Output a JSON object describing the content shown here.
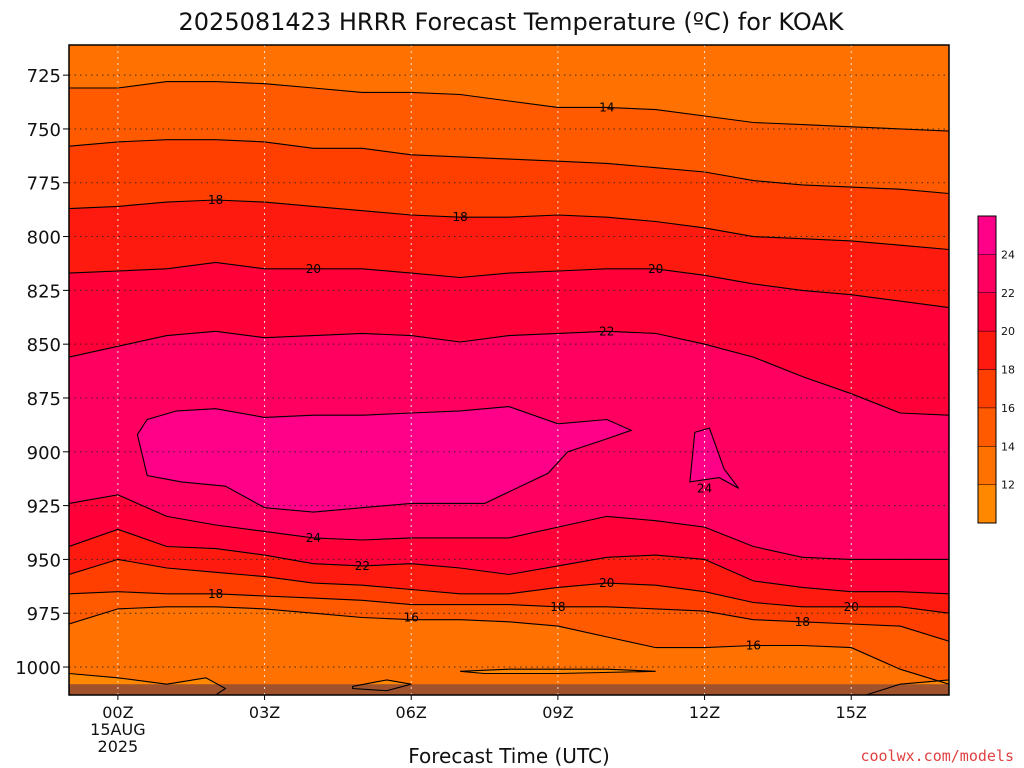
{
  "chart_data": {
    "type": "heatmap",
    "title": "2025081423 HRRR Forecast Temperature (ºC) for KOAK",
    "xlabel": "Forecast Time (UTC)",
    "ylabel": "",
    "x_ticks": [
      "00Z",
      "03Z",
      "06Z",
      "09Z",
      "12Z",
      "15Z"
    ],
    "x_hours": [
      0,
      3,
      6,
      9,
      12,
      15
    ],
    "x_first_date": "15AUG",
    "x_first_year": "2025",
    "xlim_hours": [
      -1,
      17
    ],
    "y_ticks": [
      725,
      750,
      775,
      800,
      825,
      850,
      875,
      900,
      925,
      950,
      975,
      1000
    ],
    "ylim_hPa": [
      711,
      1013
    ],
    "grid": true,
    "colorbar": {
      "levels": [
        10,
        12,
        14,
        16,
        18,
        20,
        22,
        24,
        26
      ],
      "labels": [
        "12",
        "14",
        "16",
        "18",
        "20",
        "22",
        "24"
      ],
      "colors": [
        "#ff8800",
        "#ff7100",
        "#ff5a00",
        "#ff3f00",
        "#ff1a10",
        "#ff0038",
        "#ff0060",
        "#ff0088"
      ],
      "placement": "right"
    },
    "contours": [
      {
        "value": 14,
        "points": [
          [
            -1,
            731
          ],
          [
            0,
            731
          ],
          [
            1,
            728
          ],
          [
            2,
            728
          ],
          [
            3,
            729
          ],
          [
            4,
            731
          ],
          [
            5,
            733
          ],
          [
            6,
            733
          ],
          [
            7,
            734
          ],
          [
            8,
            737
          ],
          [
            9,
            740
          ],
          [
            10,
            740
          ],
          [
            11,
            741
          ],
          [
            12,
            744
          ],
          [
            13,
            747
          ],
          [
            14,
            748
          ],
          [
            15,
            749
          ],
          [
            16,
            750
          ],
          [
            17,
            751
          ]
        ]
      },
      {
        "value": 16,
        "points": [
          [
            -1,
            758
          ],
          [
            0,
            756
          ],
          [
            1,
            755
          ],
          [
            2,
            755
          ],
          [
            3,
            756
          ],
          [
            4,
            759
          ],
          [
            5,
            759
          ],
          [
            6,
            762
          ],
          [
            7,
            763
          ],
          [
            8,
            764
          ],
          [
            9,
            765
          ],
          [
            10,
            766
          ],
          [
            11,
            768
          ],
          [
            12,
            770
          ],
          [
            13,
            774
          ],
          [
            14,
            776
          ],
          [
            15,
            777
          ],
          [
            16,
            778
          ],
          [
            17,
            780
          ]
        ]
      },
      {
        "value": 18,
        "points": [
          [
            -1,
            787
          ],
          [
            0,
            786
          ],
          [
            1,
            784
          ],
          [
            2,
            783
          ],
          [
            3,
            784
          ],
          [
            4,
            786
          ],
          [
            5,
            788
          ],
          [
            6,
            790
          ],
          [
            7,
            791
          ],
          [
            8,
            791
          ],
          [
            9,
            790
          ],
          [
            10,
            791
          ],
          [
            11,
            793
          ],
          [
            12,
            796
          ],
          [
            13,
            800
          ],
          [
            14,
            801
          ],
          [
            15,
            802
          ],
          [
            16,
            804
          ],
          [
            17,
            806
          ]
        ]
      },
      {
        "value": 20,
        "points": [
          [
            -1,
            817
          ],
          [
            0,
            816
          ],
          [
            1,
            815
          ],
          [
            2,
            812
          ],
          [
            3,
            815
          ],
          [
            4,
            815
          ],
          [
            5,
            815
          ],
          [
            6,
            817
          ],
          [
            7,
            819
          ],
          [
            8,
            817
          ],
          [
            9,
            816
          ],
          [
            10,
            815
          ],
          [
            11,
            815
          ],
          [
            12,
            818
          ],
          [
            13,
            822
          ],
          [
            14,
            825
          ],
          [
            15,
            827
          ],
          [
            16,
            830
          ],
          [
            17,
            833
          ]
        ]
      },
      {
        "value": 22,
        "points": [
          [
            -1,
            856
          ],
          [
            0,
            851
          ],
          [
            1,
            846
          ],
          [
            2,
            844
          ],
          [
            3,
            847
          ],
          [
            4,
            846
          ],
          [
            5,
            845
          ],
          [
            6,
            846
          ],
          [
            7,
            849
          ],
          [
            8,
            846
          ],
          [
            9,
            845
          ],
          [
            10,
            844
          ],
          [
            11,
            845
          ],
          [
            12,
            850
          ],
          [
            13,
            856
          ],
          [
            14,
            865
          ],
          [
            15,
            873
          ],
          [
            16,
            882
          ],
          [
            17,
            883
          ]
        ]
      },
      {
        "value": 24,
        "points": [
          [
            -1,
            924
          ],
          [
            0,
            920
          ],
          [
            1,
            930
          ],
          [
            2,
            934
          ],
          [
            3,
            937
          ],
          [
            4,
            940
          ],
          [
            5,
            941
          ],
          [
            6,
            940
          ],
          [
            7,
            940
          ],
          [
            8,
            940
          ],
          [
            9,
            935
          ],
          [
            10,
            930
          ],
          [
            11,
            932
          ],
          [
            12,
            935
          ],
          [
            13,
            944
          ],
          [
            14,
            949
          ],
          [
            15,
            950
          ],
          [
            16,
            950
          ],
          [
            17,
            950
          ]
        ]
      },
      {
        "value": 22,
        "points": [
          [
            -1,
            944
          ],
          [
            0,
            936
          ],
          [
            1,
            944
          ],
          [
            2,
            945
          ],
          [
            3,
            948
          ],
          [
            4,
            952
          ],
          [
            5,
            953
          ],
          [
            6,
            952
          ],
          [
            7,
            954
          ],
          [
            8,
            957
          ],
          [
            9,
            953
          ],
          [
            10,
            949
          ],
          [
            11,
            948
          ],
          [
            12,
            950
          ],
          [
            13,
            960
          ],
          [
            14,
            963
          ],
          [
            15,
            965
          ],
          [
            16,
            965
          ],
          [
            17,
            966
          ]
        ]
      },
      {
        "value": 20,
        "points": [
          [
            -1,
            957
          ],
          [
            0,
            950
          ],
          [
            1,
            954
          ],
          [
            2,
            956
          ],
          [
            3,
            958
          ],
          [
            4,
            961
          ],
          [
            5,
            962
          ],
          [
            6,
            964
          ],
          [
            7,
            966
          ],
          [
            8,
            966
          ],
          [
            9,
            963
          ],
          [
            10,
            961
          ],
          [
            11,
            962
          ],
          [
            12,
            965
          ],
          [
            13,
            970
          ],
          [
            14,
            972
          ],
          [
            15,
            972
          ],
          [
            16,
            972
          ],
          [
            17,
            975
          ]
        ]
      },
      {
        "value": 18,
        "points": [
          [
            -1,
            966
          ],
          [
            0,
            965
          ],
          [
            1,
            966
          ],
          [
            2,
            966
          ],
          [
            3,
            967
          ],
          [
            4,
            968
          ],
          [
            5,
            969
          ],
          [
            6,
            971
          ],
          [
            7,
            971
          ],
          [
            8,
            971
          ],
          [
            9,
            972
          ],
          [
            10,
            972
          ],
          [
            11,
            973
          ],
          [
            12,
            974
          ],
          [
            13,
            978
          ],
          [
            14,
            979
          ],
          [
            15,
            980
          ],
          [
            16,
            981
          ],
          [
            17,
            988
          ]
        ]
      },
      {
        "value": 16,
        "points": [
          [
            -1,
            980
          ],
          [
            0,
            973
          ],
          [
            1,
            972
          ],
          [
            2,
            972
          ],
          [
            3,
            973
          ],
          [
            4,
            975
          ],
          [
            5,
            977
          ],
          [
            6,
            978
          ],
          [
            7,
            978
          ],
          [
            8,
            979
          ],
          [
            9,
            981
          ],
          [
            10,
            986
          ],
          [
            11,
            991
          ],
          [
            12,
            991
          ],
          [
            13,
            990
          ],
          [
            14,
            990
          ],
          [
            15,
            991
          ],
          [
            16,
            1001
          ],
          [
            17,
            1008
          ]
        ]
      },
      {
        "value": 24,
        "closed": true,
        "points": [
          [
            0.4,
            892
          ],
          [
            0.6,
            885
          ],
          [
            1.2,
            881
          ],
          [
            2,
            880
          ],
          [
            3,
            884
          ],
          [
            4,
            883
          ],
          [
            5,
            883
          ],
          [
            6,
            882
          ],
          [
            7,
            881
          ],
          [
            8,
            879
          ],
          [
            9,
            887
          ],
          [
            10,
            885
          ],
          [
            10.5,
            890
          ],
          [
            10,
            894
          ],
          [
            9.2,
            900
          ],
          [
            8.8,
            910
          ],
          [
            7.5,
            924
          ],
          [
            6,
            924
          ],
          [
            5,
            926
          ],
          [
            4,
            928
          ],
          [
            3,
            926
          ],
          [
            2.2,
            916
          ],
          [
            1.3,
            914
          ],
          [
            0.6,
            911
          ]
        ]
      },
      {
        "value": 24,
        "closed": true,
        "points": [
          [
            11.8,
            891
          ],
          [
            12.1,
            889
          ],
          [
            12.4,
            908
          ],
          [
            12.7,
            917
          ],
          [
            12.3,
            912
          ],
          [
            11.7,
            914
          ]
        ]
      },
      {
        "value": 14,
        "closed": true,
        "points": [
          [
            -1,
            1003
          ],
          [
            0,
            1005
          ],
          [
            1,
            1008
          ],
          [
            1.8,
            1005
          ],
          [
            2.2,
            1010
          ],
          [
            2,
            1013
          ],
          [
            -1,
            1013
          ]
        ]
      },
      {
        "value": 14,
        "closed": true,
        "points": [
          [
            4.8,
            1009
          ],
          [
            5.5,
            1006
          ],
          [
            6,
            1008
          ],
          [
            5.5,
            1011
          ],
          [
            4.8,
            1010
          ]
        ]
      },
      {
        "value": 14,
        "closed": true,
        "points": [
          [
            7,
            1002
          ],
          [
            8,
            1001
          ],
          [
            9,
            1001
          ],
          [
            10,
            1001
          ],
          [
            11,
            1002
          ],
          [
            9,
            1003
          ],
          [
            7.5,
            1003
          ]
        ]
      },
      {
        "value": 14,
        "closed": true,
        "points": [
          [
            15.3,
            1013
          ],
          [
            16,
            1008
          ],
          [
            17,
            1006
          ],
          [
            17,
            1013
          ]
        ]
      }
    ],
    "contour_labels": [
      {
        "text": "14",
        "hour": 10,
        "hPa": 740
      },
      {
        "text": "18",
        "hour": 2,
        "hPa": 783
      },
      {
        "text": "18",
        "hour": 7,
        "hPa": 791
      },
      {
        "text": "20",
        "hour": 4,
        "hPa": 815
      },
      {
        "text": "20",
        "hour": 11,
        "hPa": 815
      },
      {
        "text": "22",
        "hour": 10,
        "hPa": 844
      },
      {
        "text": "24",
        "hour": 4,
        "hPa": 940
      },
      {
        "text": "24",
        "hour": 12,
        "hPa": 917
      },
      {
        "text": "22",
        "hour": 5,
        "hPa": 953
      },
      {
        "text": "20",
        "hour": 10,
        "hPa": 961
      },
      {
        "text": "20",
        "hour": 15,
        "hPa": 972
      },
      {
        "text": "18",
        "hour": 2,
        "hPa": 966
      },
      {
        "text": "18",
        "hour": 9,
        "hPa": 972
      },
      {
        "text": "18",
        "hour": 14,
        "hPa": 979
      },
      {
        "text": "16",
        "hour": 6,
        "hPa": 977
      },
      {
        "text": "16",
        "hour": 13,
        "hPa": 990
      }
    ],
    "surface_pressure_hPa": 1008,
    "surface_color": "#a0522d"
  },
  "credit": "coolwx.com/models",
  "credit_color": "#e04040"
}
